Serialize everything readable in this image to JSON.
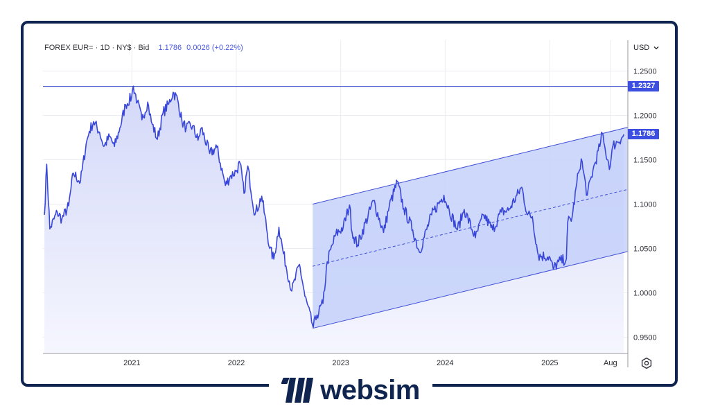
{
  "header": {
    "instrument": "FOREX EUR=",
    "interval": "1D",
    "venue": "NY$",
    "price_type": "Bid",
    "last_price": "1.1786",
    "change": "0.0026 (+0.22%)"
  },
  "currency_selector": {
    "label": "USD",
    "icon": "chevron-down-icon"
  },
  "settings_icon": "gear-icon",
  "brand": {
    "name": "websim",
    "logo_icon": "websim-logo-icon"
  },
  "colors": {
    "line": "#3b49d8",
    "channel_fill": "#c7d2fa",
    "area_fill": "#e5e8fb",
    "tag_bg": "#3d4fe0",
    "frame": "#0f2550"
  },
  "chart_data": {
    "type": "line",
    "series": [
      {
        "values": [
          [
            "2020-03-01",
            1.088
          ],
          [
            "2020-03-09",
            1.145
          ],
          [
            "2020-03-20",
            1.072
          ],
          [
            "2020-04-15",
            1.091
          ],
          [
            "2020-05-01",
            1.083
          ],
          [
            "2020-05-25",
            1.098
          ],
          [
            "2020-06-10",
            1.135
          ],
          [
            "2020-07-05",
            1.125
          ],
          [
            "2020-07-25",
            1.168
          ],
          [
            "2020-08-05",
            1.182
          ],
          [
            "2020-08-20",
            1.193
          ],
          [
            "2020-09-10",
            1.181
          ],
          [
            "2020-09-25",
            1.165
          ],
          [
            "2020-10-15",
            1.176
          ],
          [
            "2020-11-01",
            1.165
          ],
          [
            "2020-11-20",
            1.186
          ],
          [
            "2020-12-10",
            1.212
          ],
          [
            "2020-12-31",
            1.221
          ],
          [
            "2021-01-06",
            1.233
          ],
          [
            "2021-01-20",
            1.215
          ],
          [
            "2021-02-05",
            1.195
          ],
          [
            "2021-02-25",
            1.215
          ],
          [
            "2021-03-10",
            1.193
          ],
          [
            "2021-03-31",
            1.173
          ],
          [
            "2021-04-20",
            1.203
          ],
          [
            "2021-05-10",
            1.213
          ],
          [
            "2021-05-25",
            1.226
          ],
          [
            "2021-06-10",
            1.218
          ],
          [
            "2021-06-25",
            1.193
          ],
          [
            "2021-07-10",
            1.186
          ],
          [
            "2021-08-01",
            1.188
          ],
          [
            "2021-08-20",
            1.172
          ],
          [
            "2021-09-01",
            1.186
          ],
          [
            "2021-09-30",
            1.157
          ],
          [
            "2021-10-25",
            1.164
          ],
          [
            "2021-11-24",
            1.121
          ],
          [
            "2021-12-10",
            1.131
          ],
          [
            "2021-12-31",
            1.137
          ],
          [
            "2022-01-14",
            1.146
          ],
          [
            "2022-01-28",
            1.112
          ],
          [
            "2022-02-10",
            1.143
          ],
          [
            "2022-03-07",
            1.088
          ],
          [
            "2022-03-31",
            1.109
          ],
          [
            "2022-04-28",
            1.05
          ],
          [
            "2022-05-12",
            1.038
          ],
          [
            "2022-05-30",
            1.074
          ],
          [
            "2022-06-15",
            1.044
          ],
          [
            "2022-07-14",
            1.002
          ],
          [
            "2022-08-10",
            1.032
          ],
          [
            "2022-08-29",
            0.996
          ],
          [
            "2022-09-27",
            0.961
          ],
          [
            "2022-10-10",
            0.975
          ],
          [
            "2022-10-31",
            0.988
          ],
          [
            "2022-11-15",
            1.035
          ],
          [
            "2022-12-15",
            1.066
          ],
          [
            "2023-01-10",
            1.074
          ],
          [
            "2023-02-01",
            1.099
          ],
          [
            "2023-02-10",
            1.068
          ],
          [
            "2023-03-01",
            1.054
          ],
          [
            "2023-04-26",
            1.104
          ],
          [
            "2023-05-31",
            1.068
          ],
          [
            "2023-06-20",
            1.098
          ],
          [
            "2023-07-18",
            1.125
          ],
          [
            "2023-08-10",
            1.095
          ],
          [
            "2023-09-10",
            1.071
          ],
          [
            "2023-10-03",
            1.046
          ],
          [
            "2023-11-15",
            1.088
          ],
          [
            "2023-12-28",
            1.11
          ],
          [
            "2024-01-15",
            1.094
          ],
          [
            "2024-02-13",
            1.071
          ],
          [
            "2024-03-08",
            1.094
          ],
          [
            "2024-04-16",
            1.062
          ],
          [
            "2024-05-15",
            1.088
          ],
          [
            "2024-06-15",
            1.071
          ],
          [
            "2024-07-15",
            1.091
          ],
          [
            "2024-08-10",
            1.093
          ],
          [
            "2024-09-25",
            1.119
          ],
          [
            "2024-10-15",
            1.088
          ],
          [
            "2024-11-01",
            1.086
          ],
          [
            "2024-11-22",
            1.042
          ],
          [
            "2024-12-30",
            1.041
          ],
          [
            "2025-01-13",
            1.027
          ],
          [
            "2025-02-01",
            1.035
          ],
          [
            "2025-02-28",
            1.038
          ],
          [
            "2025-03-05",
            1.08
          ],
          [
            "2025-03-20",
            1.085
          ],
          [
            "2025-04-11",
            1.135
          ],
          [
            "2025-04-21",
            1.151
          ],
          [
            "2025-05-12",
            1.11
          ],
          [
            "2025-06-01",
            1.138
          ],
          [
            "2025-06-25",
            1.165
          ],
          [
            "2025-07-01",
            1.181
          ],
          [
            "2025-07-15",
            1.159
          ],
          [
            "2025-07-31",
            1.142
          ],
          [
            "2025-08-10",
            1.166
          ],
          [
            "2025-08-25",
            1.17
          ],
          [
            "2025-09-10",
            1.175
          ],
          [
            "2025-09-17",
            1.1786
          ]
        ]
      }
    ],
    "channel": {
      "upper": [
        [
          "2022-09-25",
          1.1
        ],
        [
          "2025-10-01",
          1.1866
        ]
      ],
      "middle": [
        [
          "2022-09-25",
          1.03
        ],
        [
          "2025-10-01",
          1.1166
        ]
      ],
      "lower": [
        [
          "2022-09-25",
          0.96
        ],
        [
          "2025-10-01",
          1.0466
        ]
      ]
    },
    "horizontal_line": 1.2327,
    "value_tags": [
      "1.2327",
      "1.1786"
    ],
    "ylim": [
      0.925,
      1.265
    ],
    "xlim": [
      "2020-02-25",
      "2025-10-01"
    ],
    "y_ticks": [
      "1.2500",
      "1.2000",
      "1.1500",
      "1.1000",
      "1.0500",
      "1.0000",
      "0.9500"
    ],
    "x_ticks": [
      {
        "date": "2021-01-01",
        "label": "2021"
      },
      {
        "date": "2022-01-01",
        "label": "2022"
      },
      {
        "date": "2023-01-01",
        "label": "2023"
      },
      {
        "date": "2024-01-01",
        "label": "2024"
      },
      {
        "date": "2025-01-01",
        "label": "2025"
      },
      {
        "date": "2025-08-01",
        "label": "Aug"
      }
    ],
    "grid": true,
    "axis_position": "right"
  }
}
